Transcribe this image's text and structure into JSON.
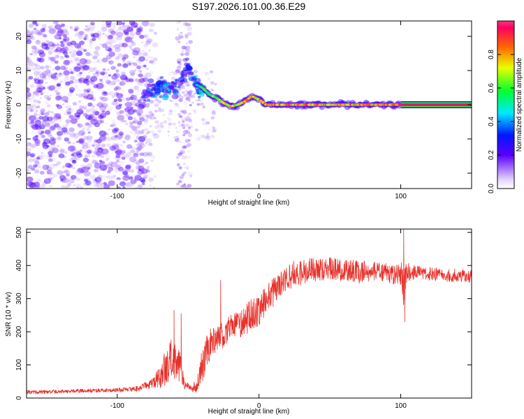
{
  "figure": {
    "title": "S197.2026.101.00.36.E29"
  },
  "chart_data": [
    {
      "type": "heatmap",
      "name": "spectrogram",
      "title": "S197.2026.101.00.36.E29",
      "xlabel": "Height of straight line (km)",
      "ylabel": "Frequency (Hz)",
      "xlim": [
        -164,
        150
      ],
      "ylim": [
        -24.5,
        24.5
      ],
      "xticks": [
        -100,
        0,
        100
      ],
      "yticks": [
        -20,
        -10,
        0,
        10,
        20
      ],
      "colorbar": {
        "label": "Normalized spectral amplitude",
        "range": [
          0,
          1
        ],
        "ticks": [
          "0.0",
          "0.2",
          "0.4",
          "0.6",
          "0.8"
        ],
        "stops": [
          {
            "v": 0.0,
            "color": "#ffffff"
          },
          {
            "v": 0.05,
            "color": "#e6d8ff"
          },
          {
            "v": 0.2,
            "color": "#5a00ff"
          },
          {
            "v": 0.32,
            "color": "#0018ff"
          },
          {
            "v": 0.45,
            "color": "#00e8ff"
          },
          {
            "v": 0.58,
            "color": "#00ff30"
          },
          {
            "v": 0.72,
            "color": "#e8ff00"
          },
          {
            "v": 0.84,
            "color": "#ff6a00"
          },
          {
            "v": 0.96,
            "color": "#ff0060"
          },
          {
            "v": 1.0,
            "color": "#ff3380"
          }
        ]
      },
      "features": {
        "noise_region_x": [
          -164,
          -80
        ],
        "noise_column_x": [
          -58,
          -48
        ],
        "signal_track": [
          {
            "x": -80,
            "f": 3,
            "a": 0.3
          },
          {
            "x": -75,
            "f": 4,
            "a": 0.35
          },
          {
            "x": -70,
            "f": 6,
            "a": 0.42
          },
          {
            "x": -65,
            "f": 4,
            "a": 0.45
          },
          {
            "x": -60,
            "f": 5,
            "a": 0.4
          },
          {
            "x": -55,
            "f": 7,
            "a": 0.35
          },
          {
            "x": -50,
            "f": 11,
            "a": 0.35
          },
          {
            "x": -45,
            "f": 6,
            "a": 0.45
          },
          {
            "x": -40,
            "f": 5,
            "a": 0.6
          },
          {
            "x": -35,
            "f": 3,
            "a": 0.65
          },
          {
            "x": -30,
            "f": 2,
            "a": 0.7
          },
          {
            "x": -25,
            "f": 0.5,
            "a": 0.75
          },
          {
            "x": -20,
            "f": -0.5,
            "a": 0.8
          },
          {
            "x": -15,
            "f": 0,
            "a": 0.8
          },
          {
            "x": -10,
            "f": 1,
            "a": 0.82
          },
          {
            "x": -5,
            "f": 2.5,
            "a": 0.85
          },
          {
            "x": 0,
            "f": 1.5,
            "a": 0.85
          },
          {
            "x": 5,
            "f": 0,
            "a": 0.9
          },
          {
            "x": 10,
            "f": 0,
            "a": 0.9
          },
          {
            "x": 100,
            "f": 0,
            "a": 0.9
          },
          {
            "x": 150,
            "f": 0,
            "a": 0.95
          }
        ]
      }
    },
    {
      "type": "line",
      "name": "snr",
      "xlabel": "Height of straight line (km)",
      "ylabel": "SNR (10 * v/v)",
      "xlim": [
        -164,
        150
      ],
      "ylim": [
        0,
        510
      ],
      "xticks": [
        -100,
        0,
        100
      ],
      "yticks": [
        0,
        100,
        200,
        300,
        400,
        500
      ],
      "color": "#e8302a",
      "series": [
        {
          "name": "SNR",
          "x": [
            -164,
            -140,
            -120,
            -100,
            -85,
            -75,
            -68,
            -62,
            -58,
            -55,
            -52,
            -48,
            -44,
            -40,
            -35,
            -30,
            -25,
            -20,
            -15,
            -10,
            -5,
            0,
            5,
            10,
            15,
            20,
            25,
            30,
            40,
            50,
            60,
            70,
            80,
            90,
            100,
            102,
            104,
            110,
            120,
            130,
            140,
            150
          ],
          "mean": [
            18,
            20,
            22,
            24,
            28,
            45,
            80,
            120,
            110,
            80,
            40,
            30,
            35,
            100,
            160,
            180,
            190,
            215,
            220,
            235,
            250,
            265,
            290,
            320,
            345,
            360,
            375,
            380,
            388,
            390,
            385,
            380,
            385,
            380,
            375,
            330,
            380,
            380,
            375,
            372,
            370,
            368
          ],
          "spread": [
            6,
            6,
            6,
            6,
            8,
            15,
            50,
            70,
            60,
            45,
            15,
            10,
            20,
            60,
            50,
            45,
            40,
            40,
            40,
            45,
            50,
            50,
            50,
            45,
            40,
            40,
            40,
            40,
            35,
            35,
            35,
            35,
            30,
            30,
            40,
            60,
            35,
            20,
            20,
            20,
            20,
            20
          ],
          "peaks": [
            {
              "x": -60,
              "y": 265
            },
            {
              "x": -55,
              "y": 255
            },
            {
              "x": -27,
              "y": 355
            },
            {
              "x": 102,
              "y": 510
            },
            {
              "x": 103,
              "y": 230
            }
          ]
        }
      ]
    }
  ]
}
